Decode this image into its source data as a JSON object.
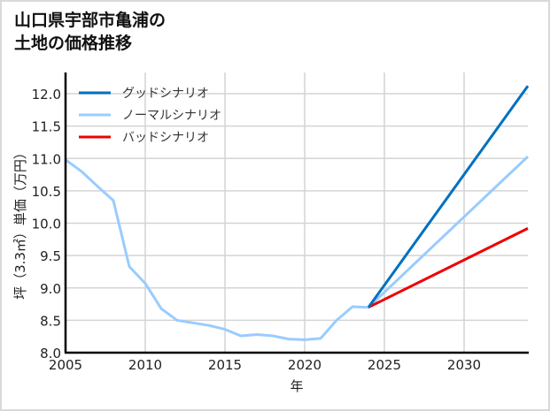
{
  "title_lines": [
    "山口県宇部市亀浦の",
    "土地の価格推移"
  ],
  "axes": {
    "xlabel": "年",
    "ylabel": "坪（3.3㎡）単価（万円）",
    "xticks": [
      "2005",
      "2010",
      "2015",
      "2020",
      "2025",
      "2030"
    ],
    "yticks": [
      "8.0",
      "8.5",
      "9.0",
      "9.5",
      "10.0",
      "10.5",
      "11.0",
      "11.5",
      "12.0"
    ]
  },
  "legend": [
    {
      "label": "グッドシナリオ",
      "color": "#0070c0"
    },
    {
      "label": "ノーマルシナリオ",
      "color": "#99ccff"
    },
    {
      "label": "バッドシナリオ",
      "color": "#ee0000"
    }
  ],
  "chart_data": {
    "type": "line",
    "title": "山口県宇部市亀浦の土地の価格推移",
    "xlabel": "年",
    "ylabel": "坪（3.3㎡）単価（万円）",
    "xlim": [
      2005,
      2034
    ],
    "ylim": [
      8.0,
      12.25
    ],
    "grid": true,
    "legend_position": "upper left",
    "series": [
      {
        "name": "ノーマルシナリオ",
        "color": "#99ccff",
        "x": [
          2005,
          2006,
          2007,
          2008,
          2009,
          2010,
          2011,
          2012,
          2013,
          2014,
          2015,
          2016,
          2017,
          2018,
          2019,
          2020,
          2021,
          2022,
          2023,
          2024,
          2034
        ],
        "y": [
          10.98,
          10.8,
          10.57,
          10.35,
          9.33,
          9.07,
          8.68,
          8.5,
          8.46,
          8.42,
          8.36,
          8.26,
          8.28,
          8.26,
          8.21,
          8.2,
          8.22,
          8.5,
          8.71,
          8.7,
          11.03
        ]
      },
      {
        "name": "グッドシナリオ",
        "color": "#0070c0",
        "x": [
          2024,
          2034
        ],
        "y": [
          8.7,
          12.12
        ]
      },
      {
        "name": "バッドシナリオ",
        "color": "#ee0000",
        "x": [
          2024,
          2034
        ],
        "y": [
          8.7,
          9.92
        ]
      }
    ]
  }
}
